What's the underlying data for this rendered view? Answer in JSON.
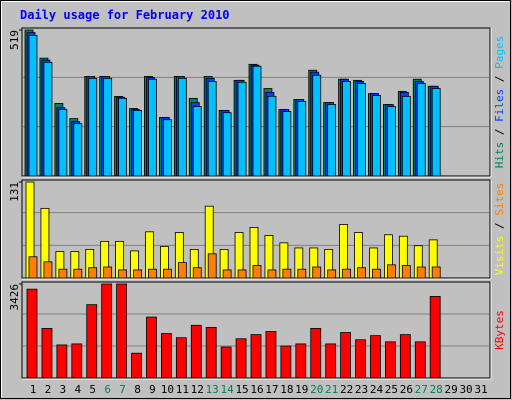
{
  "chart_data": {
    "type": "bar",
    "title": "Daily usage for February 2010",
    "categories": [
      "1",
      "2",
      "3",
      "4",
      "5",
      "6",
      "7",
      "8",
      "9",
      "10",
      "11",
      "12",
      "13",
      "14",
      "15",
      "16",
      "17",
      "18",
      "19",
      "20",
      "21",
      "22",
      "23",
      "24",
      "25",
      "26",
      "27",
      "28",
      "29",
      "30",
      "31"
    ],
    "category_colors": [
      "#000000",
      "#000000",
      "#000000",
      "#000000",
      "#000000",
      "#00805c",
      "#00805c",
      "#000000",
      "#000000",
      "#000000",
      "#000000",
      "#000000",
      "#00805c",
      "#00805c",
      "#000000",
      "#000000",
      "#000000",
      "#000000",
      "#000000",
      "#00805c",
      "#00805c",
      "#000000",
      "#000000",
      "#000000",
      "#000000",
      "#000000",
      "#00805c",
      "#00805c",
      "#000000",
      "#000000",
      "#000000"
    ],
    "panels": [
      {
        "ylim": [
          0,
          519
        ],
        "yticks": [
          519
        ],
        "series": [
          {
            "name": "Hits",
            "color": "#00805c",
            "values": [
              519,
              419,
              258,
              204,
              354,
              354,
              283,
              240,
              354,
              208,
              354,
              276,
              354,
              233,
              340,
              397,
              311,
              236,
              272,
              376,
              261,
              344,
              340,
              293,
              254,
              301,
              344,
              319,
              null,
              null,
              null
            ]
          },
          {
            "name": "Files",
            "color": "#0040ff",
            "values": [
              510,
              412,
              243,
              193,
              354,
              354,
              280,
              236,
              350,
              208,
              354,
              261,
              347,
              233,
              340,
              394,
              297,
              236,
              272,
              369,
              261,
              344,
              336,
              293,
              254,
              297,
              336,
              319,
              null,
              null,
              null
            ]
          },
          {
            "name": "Pages",
            "color": "#00c0ff",
            "values": [
              500,
              404,
              236,
              186,
              347,
              347,
              276,
              233,
              344,
              200,
              347,
              247,
              336,
              225,
              333,
              390,
              283,
              229,
              265,
              358,
              254,
              336,
              329,
              286,
              247,
              283,
              329,
              311,
              null,
              null,
              null
            ]
          }
        ]
      },
      {
        "ylim": [
          0,
          131
        ],
        "yticks": [
          131
        ],
        "series": [
          {
            "name": "Visits",
            "color": "#ffff00",
            "values": [
              131,
              95,
              36,
              36,
              39,
              50,
              50,
              37,
              63,
              43,
              62,
              39,
              98,
              39,
              62,
              69,
              58,
              48,
              41,
              41,
              39,
              73,
              62,
              41,
              59,
              57,
              44,
              52,
              null,
              null,
              null
            ]
          },
          {
            "name": "Sites",
            "color": "#ff8000",
            "values": [
              29,
              22,
              12,
              12,
              14,
              15,
              11,
              11,
              12,
              12,
              21,
              14,
              33,
              11,
              11,
              17,
              11,
              12,
              12,
              15,
              11,
              12,
              14,
              12,
              18,
              17,
              15,
              15,
              null,
              null,
              null
            ]
          }
        ]
      },
      {
        "ylim": [
          0,
          3426
        ],
        "yticks": [
          3426
        ],
        "series": [
          {
            "name": "KBytes",
            "color": "#ff0000",
            "values": [
              3238,
              1807,
              1205,
              1242,
              2673,
              3426,
              3426,
              904,
              2221,
              1619,
              1468,
              1920,
              1845,
              1129,
              1431,
              1581,
              1694,
              1167,
              1242,
              1807,
              1242,
              1657,
              1393,
              1544,
              1318,
              1581,
              1318,
              2974,
              null,
              null,
              null
            ]
          }
        ]
      }
    ]
  }
}
